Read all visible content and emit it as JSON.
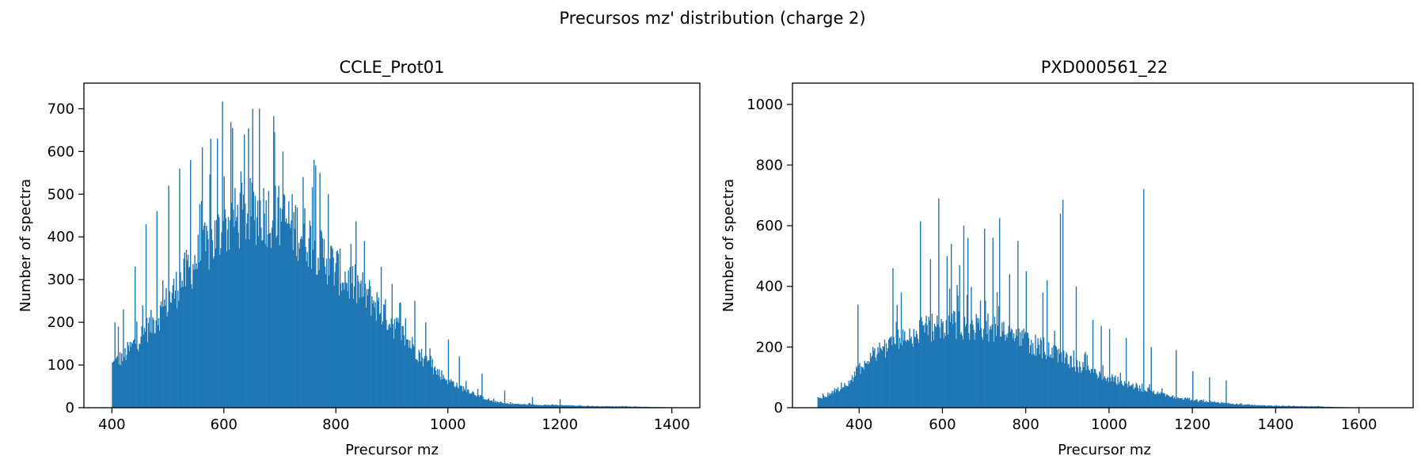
{
  "figure": {
    "title": "Precursos mz' distribution (charge 2)",
    "bar_color": "#1f77b4"
  },
  "chart_data": [
    {
      "type": "histogram",
      "title": "CCLE_Prot01",
      "xlabel": "Precursor mz",
      "ylabel": "Number of spectra",
      "xlim": [
        350,
        1450
      ],
      "ylim": [
        0,
        760
      ],
      "xticks": [
        400,
        600,
        800,
        1000,
        1200,
        1400
      ],
      "yticks": [
        0,
        100,
        200,
        300,
        400,
        500,
        600,
        700
      ],
      "data_range": [
        400,
        1400
      ],
      "envelope": [
        [
          400,
          100
        ],
        [
          420,
          120
        ],
        [
          440,
          150
        ],
        [
          460,
          180
        ],
        [
          480,
          210
        ],
        [
          500,
          250
        ],
        [
          520,
          290
        ],
        [
          540,
          330
        ],
        [
          560,
          360
        ],
        [
          580,
          390
        ],
        [
          600,
          420
        ],
        [
          620,
          440
        ],
        [
          640,
          455
        ],
        [
          660,
          460
        ],
        [
          680,
          455
        ],
        [
          700,
          445
        ],
        [
          720,
          430
        ],
        [
          740,
          410
        ],
        [
          760,
          385
        ],
        [
          780,
          355
        ],
        [
          800,
          325
        ],
        [
          820,
          300
        ],
        [
          840,
          280
        ],
        [
          860,
          260
        ],
        [
          880,
          230
        ],
        [
          900,
          200
        ],
        [
          920,
          170
        ],
        [
          940,
          140
        ],
        [
          960,
          110
        ],
        [
          980,
          85
        ],
        [
          1000,
          65
        ],
        [
          1020,
          50
        ],
        [
          1040,
          38
        ],
        [
          1060,
          25
        ],
        [
          1080,
          15
        ],
        [
          1100,
          10
        ],
        [
          1150,
          7
        ],
        [
          1200,
          6
        ],
        [
          1250,
          4
        ],
        [
          1300,
          3
        ],
        [
          1350,
          2
        ],
        [
          1400,
          1
        ]
      ],
      "peaks": [
        [
          597,
          717
        ],
        [
          650,
          700
        ],
        [
          663,
          700
        ],
        [
          615,
          655
        ],
        [
          588,
          630
        ],
        [
          575,
          630
        ],
        [
          635,
          640
        ],
        [
          690,
          645
        ],
        [
          705,
          600
        ],
        [
          760,
          580
        ],
        [
          770,
          550
        ],
        [
          740,
          540
        ],
        [
          785,
          500
        ],
        [
          560,
          610
        ],
        [
          540,
          580
        ],
        [
          520,
          560
        ],
        [
          500,
          520
        ],
        [
          480,
          460
        ],
        [
          460,
          430
        ],
        [
          440,
          330
        ],
        [
          420,
          230
        ],
        [
          405,
          200
        ],
        [
          410,
          190
        ],
        [
          850,
          390
        ],
        [
          880,
          330
        ],
        [
          900,
          290
        ],
        [
          940,
          250
        ],
        [
          960,
          200
        ],
        [
          1000,
          160
        ],
        [
          1020,
          120
        ],
        [
          1060,
          80
        ],
        [
          1100,
          40
        ],
        [
          1150,
          25
        ],
        [
          1200,
          20
        ]
      ]
    },
    {
      "type": "histogram",
      "title": "PXD000561_22",
      "xlabel": "Precursor mz",
      "ylabel": "Number of spectra",
      "xlim": [
        240,
        1730
      ],
      "ylim": [
        0,
        1070
      ],
      "xticks": [
        400,
        600,
        800,
        1000,
        1200,
        1400,
        1600
      ],
      "yticks": [
        0,
        200,
        400,
        600,
        800,
        1000
      ],
      "data_range": [
        300,
        1620
      ],
      "envelope": [
        [
          300,
          30
        ],
        [
          320,
          40
        ],
        [
          340,
          55
        ],
        [
          360,
          70
        ],
        [
          380,
          90
        ],
        [
          400,
          130
        ],
        [
          420,
          160
        ],
        [
          440,
          185
        ],
        [
          460,
          200
        ],
        [
          480,
          215
        ],
        [
          500,
          225
        ],
        [
          520,
          238
        ],
        [
          540,
          250
        ],
        [
          560,
          260
        ],
        [
          580,
          268
        ],
        [
          600,
          275
        ],
        [
          620,
          278
        ],
        [
          640,
          275
        ],
        [
          660,
          270
        ],
        [
          680,
          268
        ],
        [
          700,
          265
        ],
        [
          720,
          262
        ],
        [
          740,
          255
        ],
        [
          760,
          245
        ],
        [
          780,
          235
        ],
        [
          800,
          225
        ],
        [
          820,
          210
        ],
        [
          840,
          195
        ],
        [
          860,
          180
        ],
        [
          880,
          168
        ],
        [
          900,
          155
        ],
        [
          920,
          140
        ],
        [
          940,
          130
        ],
        [
          960,
          118
        ],
        [
          980,
          108
        ],
        [
          1000,
          98
        ],
        [
          1020,
          90
        ],
        [
          1040,
          80
        ],
        [
          1060,
          72
        ],
        [
          1080,
          62
        ],
        [
          1100,
          55
        ],
        [
          1120,
          48
        ],
        [
          1140,
          42
        ],
        [
          1160,
          35
        ],
        [
          1180,
          30
        ],
        [
          1200,
          25
        ],
        [
          1240,
          20
        ],
        [
          1280,
          15
        ],
        [
          1320,
          10
        ],
        [
          1360,
          8
        ],
        [
          1400,
          6
        ],
        [
          1450,
          5
        ],
        [
          1500,
          4
        ],
        [
          1550,
          2
        ],
        [
          1600,
          1
        ],
        [
          1620,
          1
        ]
      ],
      "peaks": [
        [
          1082,
          720
        ],
        [
          590,
          690
        ],
        [
          888,
          685
        ],
        [
          545,
          615
        ],
        [
          882,
          640
        ],
        [
          735,
          625
        ],
        [
          650,
          600
        ],
        [
          700,
          590
        ],
        [
          720,
          560
        ],
        [
          780,
          550
        ],
        [
          660,
          560
        ],
        [
          620,
          540
        ],
        [
          480,
          460
        ],
        [
          610,
          500
        ],
        [
          570,
          490
        ],
        [
          640,
          470
        ],
        [
          800,
          450
        ],
        [
          760,
          440
        ],
        [
          850,
          420
        ],
        [
          920,
          400
        ],
        [
          840,
          380
        ],
        [
          500,
          380
        ],
        [
          395,
          340
        ],
        [
          960,
          290
        ],
        [
          980,
          270
        ],
        [
          1000,
          260
        ],
        [
          1040,
          230
        ],
        [
          1100,
          200
        ],
        [
          1160,
          190
        ],
        [
          1200,
          120
        ],
        [
          1240,
          100
        ],
        [
          1280,
          90
        ]
      ]
    }
  ]
}
